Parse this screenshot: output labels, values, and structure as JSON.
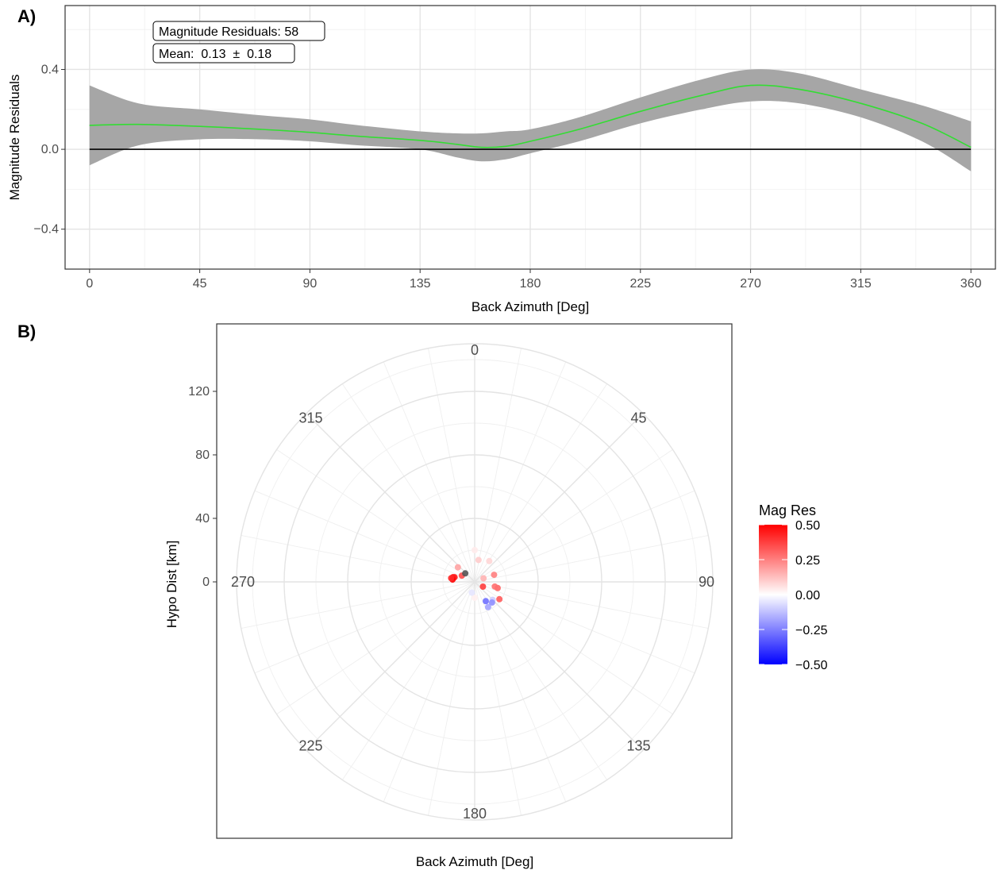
{
  "panel_a_tag": "A)",
  "panel_b_tag": "B)",
  "chart_data": [
    {
      "type": "line",
      "x_label": "Back Azimuth [Deg]",
      "y_label": "Magnitude Residuals",
      "xlim": [
        -10,
        370
      ],
      "ylim": [
        -0.6,
        0.72
      ],
      "x_ticks": [
        0,
        45,
        90,
        135,
        180,
        225,
        270,
        315,
        360
      ],
      "x_tick_labels": [
        "0",
        "45",
        "90",
        "135",
        "180",
        "225",
        "270",
        "315",
        "360"
      ],
      "y_ticks": [
        0.4,
        0.0,
        -0.4
      ],
      "y_tick_labels": [
        "0.4",
        "0.0",
        "−0.4"
      ],
      "grid": true,
      "colors": {
        "smooth": "#33dd33",
        "ribbon": "#a6a6a6",
        "reference": "#000000"
      },
      "annotations": [
        "Magnitude Residuals: 58",
        "Mean:  0.13  ±  0.18"
      ],
      "series": [
        {
          "x": [
            0,
            20,
            45,
            70,
            90,
            110,
            135,
            150,
            160,
            170,
            180,
            200,
            225,
            250,
            270,
            290,
            315,
            340,
            360
          ],
          "y": [
            0.12,
            0.125,
            0.115,
            0.1,
            0.085,
            0.065,
            0.045,
            0.025,
            0.01,
            0.015,
            0.04,
            0.1,
            0.19,
            0.27,
            0.32,
            0.3,
            0.23,
            0.13,
            0.01
          ],
          "lower": [
            -0.08,
            0.02,
            0.05,
            0.05,
            0.04,
            0.02,
            0.0,
            -0.04,
            -0.06,
            -0.05,
            -0.02,
            0.04,
            0.13,
            0.2,
            0.24,
            0.23,
            0.16,
            0.04,
            -0.11
          ],
          "upper": [
            0.32,
            0.23,
            0.2,
            0.17,
            0.15,
            0.12,
            0.09,
            0.08,
            0.08,
            0.09,
            0.1,
            0.16,
            0.26,
            0.35,
            0.4,
            0.38,
            0.3,
            0.22,
            0.14
          ]
        }
      ],
      "reference_line": 0
    },
    {
      "type": "scatter",
      "coordinate_system": "polar",
      "x_label": "Back Azimuth [Deg]",
      "y_label": "Hypo Dist [km]",
      "r_range": [
        0,
        150
      ],
      "r_ticks": [
        0,
        40,
        80,
        120
      ],
      "r_tick_labels": [
        "0",
        "40",
        "80",
        "120"
      ],
      "angle_labels": [
        {
          "angle": 0,
          "label": "0"
        },
        {
          "angle": 45,
          "label": "45"
        },
        {
          "angle": 90,
          "label": "90"
        },
        {
          "angle": 135,
          "label": "135"
        },
        {
          "angle": 180,
          "label": "180"
        },
        {
          "angle": 225,
          "label": "225"
        },
        {
          "angle": 270,
          "label": "270"
        },
        {
          "angle": 315,
          "label": "315"
        }
      ],
      "legend": {
        "title": "Mag Res",
        "placement": "right",
        "ticks": [
          0.5,
          0.25,
          0.0,
          -0.25,
          -0.5
        ],
        "tick_labels": [
          "0.50",
          "0.25",
          "0.00",
          "−0.25",
          "−0.50"
        ],
        "color_low": "#0000ff",
        "color_mid": "#ffffff",
        "color_high": "#ff0000"
      },
      "points": [
        {
          "azimuth": 282,
          "dist": 14,
          "res": 0.48
        },
        {
          "azimuth": 283,
          "dist": 13,
          "res": 0.45
        },
        {
          "azimuth": 276,
          "dist": 14,
          "res": 0.5
        },
        {
          "azimuth": 279,
          "dist": 15,
          "res": 0.42
        },
        {
          "azimuth": 296,
          "dist": 9,
          "res": 0.35
        },
        {
          "azimuth": 312,
          "dist": 8,
          "res": null
        },
        {
          "azimuth": 311,
          "dist": 14,
          "res": 0.18
        },
        {
          "azimuth": 0,
          "dist": 20,
          "res": 0.04
        },
        {
          "azimuth": 10,
          "dist": 14,
          "res": 0.1
        },
        {
          "azimuth": 35,
          "dist": 16,
          "res": 0.08
        },
        {
          "azimuth": 70,
          "dist": 13,
          "res": 0.25
        },
        {
          "azimuth": 105,
          "dist": 15,
          "res": 0.3
        },
        {
          "azimuth": 103,
          "dist": 13,
          "res": 0.28
        },
        {
          "azimuth": 125,
          "dist": 19,
          "res": 0.32
        },
        {
          "azimuth": 135,
          "dist": 16,
          "res": -0.1
        },
        {
          "azimuth": 150,
          "dist": 14,
          "res": -0.28
        },
        {
          "azimuth": 140,
          "dist": 17,
          "res": -0.22
        },
        {
          "azimuth": 152,
          "dist": 18,
          "res": -0.18
        },
        {
          "azimuth": 180,
          "dist": 10,
          "res": 0.03
        },
        {
          "azimuth": 195,
          "dist": 7,
          "res": -0.05
        },
        {
          "azimuth": 120,
          "dist": 6,
          "res": 0.38
        },
        {
          "azimuth": 68,
          "dist": 6,
          "res": 0.15
        }
      ]
    }
  ]
}
